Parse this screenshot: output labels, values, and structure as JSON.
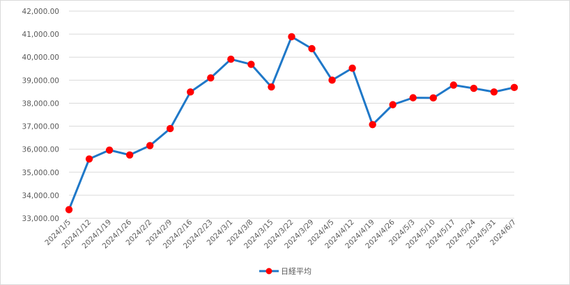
{
  "chart_data": {
    "type": "line",
    "title": "",
    "xlabel": "",
    "ylabel": "",
    "ylim": [
      33000,
      42000
    ],
    "y_ticks": [
      33000,
      34000,
      35000,
      36000,
      37000,
      38000,
      39000,
      40000,
      41000,
      42000
    ],
    "y_tick_labels": [
      "33,000.00",
      "34,000.00",
      "35,000.00",
      "36,000.00",
      "37,000.00",
      "38,000.00",
      "39,000.00",
      "40,000.00",
      "41,000.00",
      "42,000.00"
    ],
    "categories": [
      "2024/1/5",
      "2024/1/12",
      "2024/1/19",
      "2024/1/26",
      "2024/2/2",
      "2024/2/9",
      "2024/2/16",
      "2024/2/23",
      "2024/3/1",
      "2024/3/8",
      "2024/3/15",
      "2024/3/22",
      "2024/3/29",
      "2024/4/5",
      "2024/4/12",
      "2024/4/19",
      "2024/4/26",
      "2024/5/3",
      "2024/5/10",
      "2024/5/17",
      "2024/5/24",
      "2024/5/31",
      "2024/6/7"
    ],
    "series": [
      {
        "name": "日経平均",
        "line_color": "#1f78c8",
        "marker_color": "#ff0000",
        "values": [
          33377,
          35577,
          35963,
          35751,
          36158,
          36897,
          38487,
          39098,
          39911,
          39688,
          38707,
          40888,
          40369,
          39000,
          39523,
          37068,
          37934,
          38236,
          38229,
          38787,
          38646,
          38488,
          38684
        ]
      }
    ],
    "grid": true,
    "grid_color": "#d9d9d9",
    "legend_position": "bottom"
  }
}
